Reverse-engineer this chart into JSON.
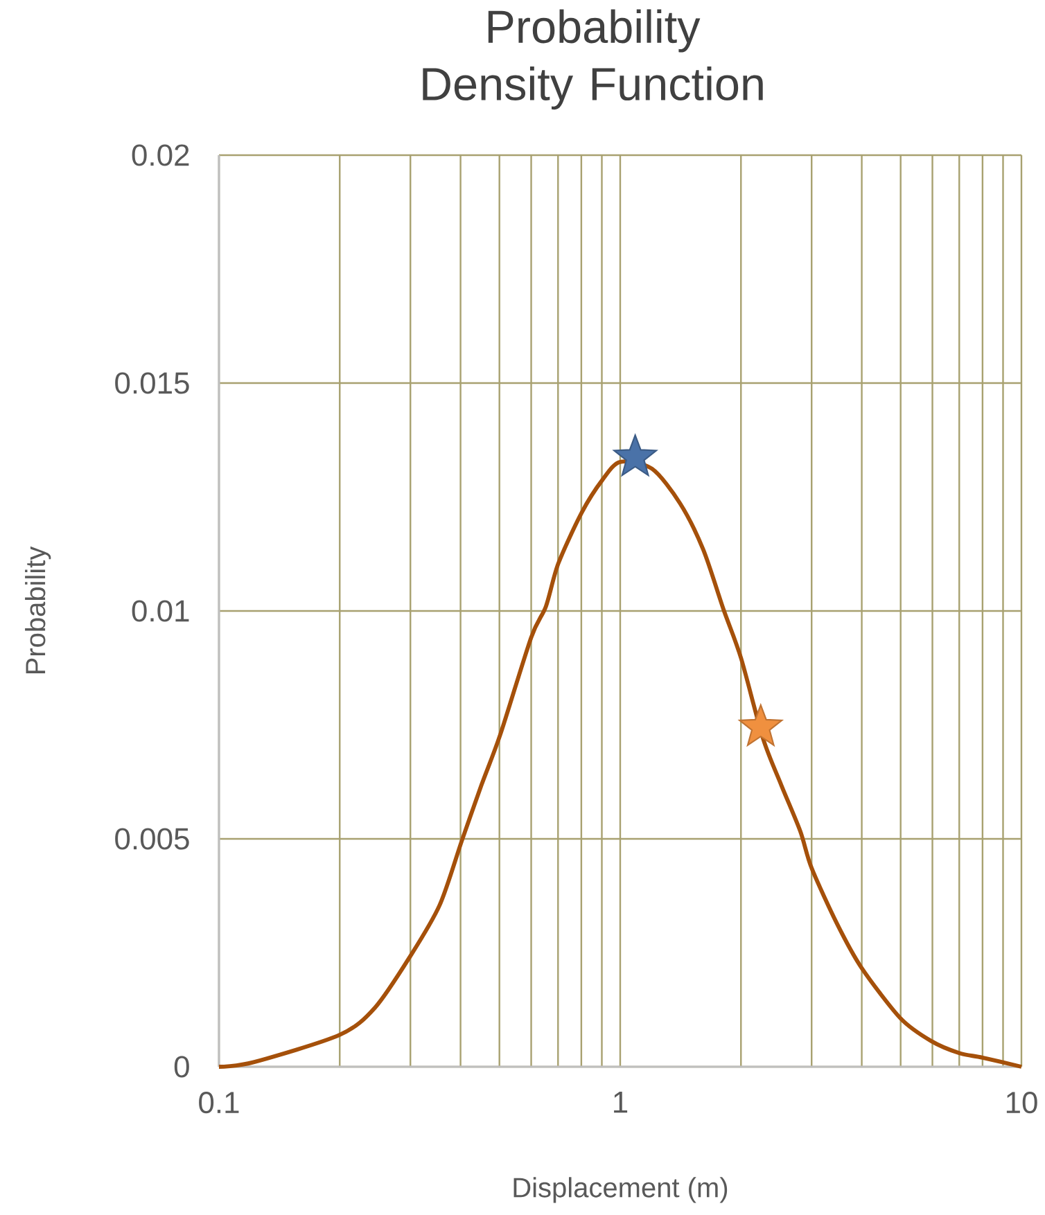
{
  "chart_data": {
    "type": "line",
    "title": "Probability Density Function",
    "xlabel": "Displacement (m)",
    "ylabel": "Probability",
    "log": "x",
    "grid": true,
    "xlim": [
      0.1,
      10
    ],
    "ylim": [
      0,
      0.02
    ],
    "xticks": [
      0.1,
      {
        "value": 0.2,
        "label": null
      },
      {
        "value": 0.3,
        "label": null
      },
      {
        "value": 0.4,
        "label": null
      },
      {
        "value": 0.5,
        "label": null
      },
      {
        "value": 0.6,
        "label": null
      },
      {
        "value": 0.7,
        "label": null
      },
      {
        "value": 0.8,
        "label": null
      },
      {
        "value": 0.9,
        "label": null
      },
      1,
      {
        "value": 2,
        "label": null
      },
      {
        "value": 3,
        "label": null
      },
      {
        "value": 4,
        "label": null
      },
      {
        "value": 5,
        "label": null
      },
      {
        "value": 6,
        "label": null
      },
      {
        "value": 7,
        "label": null
      },
      {
        "value": 8,
        "label": null
      },
      {
        "value": 9,
        "label": null
      },
      10
    ],
    "yticks": [
      0,
      0.005,
      0.01,
      0.015,
      0.02
    ],
    "series": [
      {
        "color": "#a5500a",
        "x": [
          0.1,
          0.122,
          0.2,
          0.245,
          0.3,
          0.355,
          0.403,
          0.451,
          0.503,
          0.6,
          0.653,
          0.701,
          0.802,
          0.902,
          1.0,
          1.2,
          1.41,
          1.61,
          1.81,
          2.0,
          2.27,
          2.52,
          2.81,
          3.0,
          3.47,
          3.99,
          5.0,
          5.97,
          7.0,
          8.0,
          10
        ],
        "values": [
          0,
          0.0001,
          0.0007,
          0.0013,
          0.00243,
          0.00355,
          0.00496,
          0.00618,
          0.0073,
          0.00942,
          0.0101,
          0.01104,
          0.01216,
          0.01287,
          0.01327,
          0.01312,
          0.01236,
          0.01135,
          0.01003,
          0.00897,
          0.0072,
          0.00618,
          0.00517,
          0.00436,
          0.00314,
          0.00218,
          0.00106,
          0.00056,
          0.0003,
          0.0002,
          0
        ]
      },
      {
        "type": "scatter",
        "marker": "star",
        "color": "#4a72a8",
        "x": [
          1.09
        ],
        "values": [
          0.01337
        ]
      },
      {
        "type": "scatter",
        "marker": "star",
        "color": "#f0903f",
        "x": [
          2.24
        ],
        "values": [
          0.00745
        ]
      }
    ]
  }
}
